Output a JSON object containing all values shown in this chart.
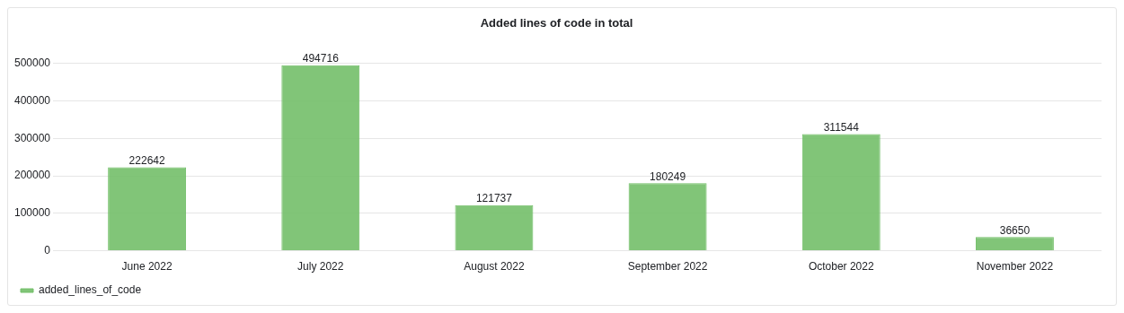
{
  "chart_data": {
    "type": "bar",
    "title": "Added lines of code in total",
    "categories": [
      "June 2022",
      "July 2022",
      "August 2022",
      "September 2022",
      "October 2022",
      "November 2022"
    ],
    "series": [
      {
        "name": "added_lines_of_code",
        "color": "#73bf69",
        "values": [
          222642,
          494716,
          121737,
          180249,
          311544,
          36650
        ]
      }
    ],
    "ylim": [
      0,
      500000
    ],
    "yticks": [
      0,
      100000,
      200000,
      300000,
      400000,
      500000
    ],
    "grid": "y",
    "legend": "bottom left",
    "data_labels": true
  }
}
